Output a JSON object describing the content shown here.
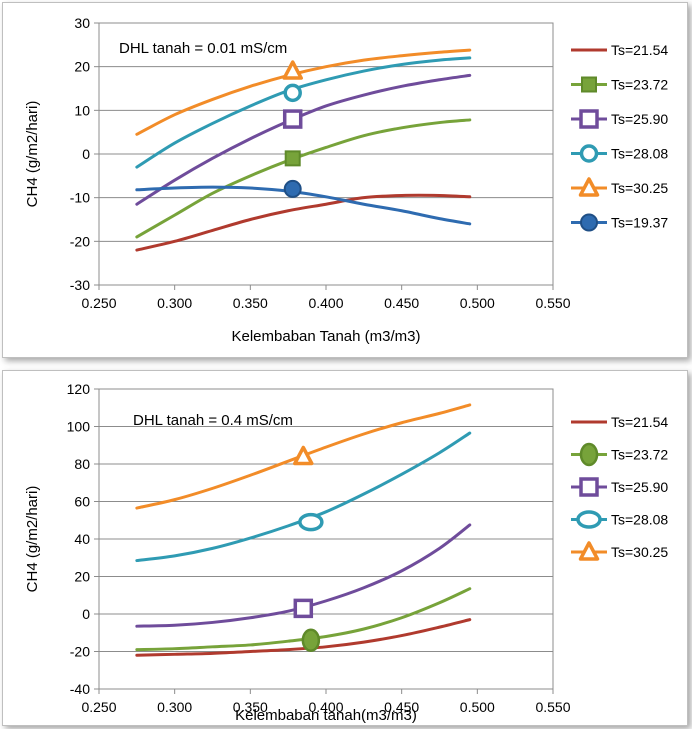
{
  "chart_data": [
    {
      "type": "line",
      "title": "",
      "annotation": "DHL tanah = 0.01 mS/cm",
      "xlabel": "Kelembaban Tanah (m3/m3)",
      "ylabel": "CH4 (g/m2/hari)",
      "xlim": [
        0.25,
        0.55
      ],
      "ylim": [
        -30,
        30
      ],
      "x_ticks": [
        "0.250",
        "0.300",
        "0.350",
        "0.400",
        "0.450",
        "0.500",
        "0.550"
      ],
      "y_ticks": [
        "-30",
        "-20",
        "-10",
        "0",
        "10",
        "20",
        "30"
      ],
      "grid": "horizontal",
      "legend_position": "right",
      "series": [
        {
          "name": "Ts=21.54",
          "color": "#b03a2e",
          "marker": "none",
          "x": [
            0.275,
            0.3,
            0.325,
            0.35,
            0.375,
            0.4,
            0.425,
            0.45,
            0.475,
            0.495
          ],
          "y": [
            -22,
            -20,
            -17.5,
            -15,
            -13,
            -11.5,
            -10,
            -9.5,
            -9.5,
            -9.8
          ]
        },
        {
          "name": "Ts=23.72",
          "color": "#77a33a",
          "marker": "square",
          "marker_x": 0.378,
          "marker_y": -1,
          "x": [
            0.275,
            0.3,
            0.325,
            0.35,
            0.375,
            0.4,
            0.425,
            0.45,
            0.475,
            0.495
          ],
          "y": [
            -19,
            -14,
            -9,
            -5,
            -1.5,
            1.5,
            4.2,
            6,
            7.2,
            7.8
          ]
        },
        {
          "name": "Ts=25.90",
          "color": "#6f4c9b",
          "marker": "square-open",
          "marker_x": 0.378,
          "marker_y": 8,
          "x": [
            0.275,
            0.3,
            0.325,
            0.35,
            0.375,
            0.4,
            0.425,
            0.45,
            0.475,
            0.495
          ],
          "y": [
            -11.5,
            -6,
            -1,
            3.5,
            7.5,
            11,
            13.5,
            15.5,
            17,
            18
          ]
        },
        {
          "name": "Ts=28.08",
          "color": "#2f9bb3",
          "marker": "circle-open",
          "marker_x": 0.378,
          "marker_y": 14,
          "x": [
            0.275,
            0.3,
            0.325,
            0.35,
            0.375,
            0.4,
            0.425,
            0.45,
            0.475,
            0.495
          ],
          "y": [
            -3,
            2.5,
            7,
            11,
            14.5,
            17,
            19,
            20.5,
            21.5,
            22
          ]
        },
        {
          "name": "Ts=30.25",
          "color": "#f28c28",
          "marker": "triangle-open",
          "marker_x": 0.378,
          "marker_y": 19,
          "x": [
            0.275,
            0.3,
            0.325,
            0.35,
            0.375,
            0.4,
            0.425,
            0.45,
            0.475,
            0.495
          ],
          "y": [
            4.5,
            9,
            12.5,
            15.5,
            18,
            20,
            21.5,
            22.5,
            23.3,
            23.8
          ]
        },
        {
          "name": "Ts=19.37",
          "color": "#2e6bb0",
          "marker": "circle-filled",
          "marker_x": 0.378,
          "marker_y": -8,
          "x": [
            0.275,
            0.3,
            0.325,
            0.35,
            0.375,
            0.4,
            0.425,
            0.45,
            0.475,
            0.495
          ],
          "y": [
            -8.2,
            -7.8,
            -7.6,
            -7.8,
            -8.5,
            -9.8,
            -11.5,
            -13,
            -14.8,
            -16
          ]
        }
      ]
    },
    {
      "type": "line",
      "title": "",
      "annotation": "DHL tanah = 0.4 mS/cm",
      "xlabel": "Kelembaban tanah(m3/m3)",
      "ylabel": "CH4 (g/m2/hari)",
      "xlim": [
        0.25,
        0.55
      ],
      "ylim": [
        -40,
        120
      ],
      "x_ticks": [
        "0.250",
        "0.300",
        "0.350",
        "0.400",
        "0.450",
        "0.500",
        "0.550"
      ],
      "y_ticks": [
        "-40",
        "-20",
        "0",
        "20",
        "40",
        "60",
        "80",
        "100",
        "120"
      ],
      "grid": "horizontal",
      "legend_position": "right",
      "series": [
        {
          "name": "Ts=21.54",
          "color": "#b03a2e",
          "marker": "none",
          "x": [
            0.275,
            0.3,
            0.325,
            0.35,
            0.375,
            0.4,
            0.425,
            0.45,
            0.475,
            0.495
          ],
          "y": [
            -22,
            -21.5,
            -21,
            -20,
            -19,
            -17.5,
            -15,
            -11.5,
            -7,
            -3
          ]
        },
        {
          "name": "Ts=23.72",
          "color": "#77a33a",
          "marker": "ellipse-filled",
          "marker_x": 0.39,
          "marker_y": -14,
          "x": [
            0.275,
            0.3,
            0.325,
            0.35,
            0.375,
            0.4,
            0.425,
            0.45,
            0.475,
            0.495
          ],
          "y": [
            -19,
            -18.5,
            -17.5,
            -16.5,
            -14.5,
            -12,
            -8,
            -2,
            6,
            13.5
          ]
        },
        {
          "name": "Ts=25.90",
          "color": "#6f4c9b",
          "marker": "square-open",
          "marker_x": 0.385,
          "marker_y": 3,
          "x": [
            0.275,
            0.3,
            0.325,
            0.35,
            0.375,
            0.4,
            0.425,
            0.45,
            0.475,
            0.495
          ],
          "y": [
            -6.5,
            -6,
            -4.5,
            -2,
            1.5,
            7,
            14,
            23,
            35,
            47.5
          ]
        },
        {
          "name": "Ts=28.08",
          "color": "#2f9bb3",
          "marker": "ellipse-open",
          "marker_x": 0.39,
          "marker_y": 49,
          "x": [
            0.275,
            0.3,
            0.325,
            0.35,
            0.375,
            0.4,
            0.425,
            0.45,
            0.475,
            0.495
          ],
          "y": [
            28.5,
            31,
            35,
            40.5,
            47,
            54.5,
            64,
            74.5,
            86,
            96.5
          ]
        },
        {
          "name": "Ts=30.25",
          "color": "#f28c28",
          "marker": "triangle-open",
          "marker_x": 0.385,
          "marker_y": 84,
          "x": [
            0.275,
            0.3,
            0.325,
            0.35,
            0.375,
            0.4,
            0.425,
            0.45,
            0.475,
            0.495
          ],
          "y": [
            56.5,
            61,
            67,
            74,
            81.5,
            89,
            96,
            102,
            107,
            111.5
          ]
        }
      ]
    }
  ]
}
